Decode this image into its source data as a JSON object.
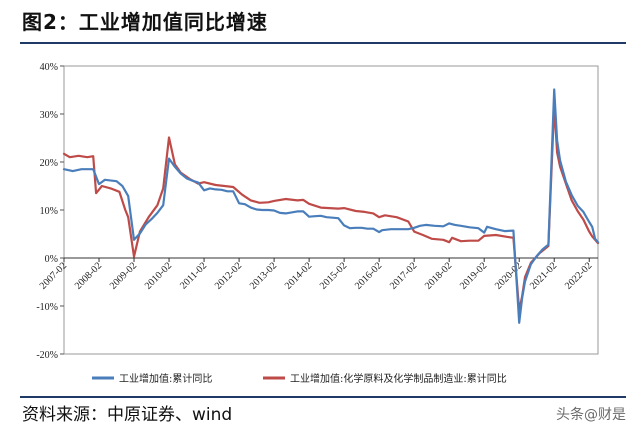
{
  "header": {
    "title": "图2：工业增加值同比增速"
  },
  "footer": {
    "source": "资料来源：中原证券、wind",
    "watermark": "头条@财是"
  },
  "chart_data": {
    "type": "line",
    "ylim": [
      -20,
      40
    ],
    "yticks": [
      -20,
      -10,
      0,
      10,
      20,
      30,
      40
    ],
    "ytick_labels": [
      "-20%",
      "-10%",
      "0%",
      "10%",
      "20%",
      "30%",
      "40%"
    ],
    "xlim": [
      "2007-02",
      "2022-05"
    ],
    "xtick_labels": [
      "2007-02",
      "2008-02",
      "2009-02",
      "2010-02",
      "2011-02",
      "2012-02",
      "2013-02",
      "2014-02",
      "2015-02",
      "2016-02",
      "2017-02",
      "2018-02",
      "2019-02",
      "2020-02",
      "2021-02",
      "2022-02"
    ],
    "colors": {
      "series1": "#4a7ebb",
      "series2": "#be4b48"
    },
    "legend_position": "bottom",
    "series": [
      {
        "name": "工业增加值:累计同比",
        "points": [
          [
            "2007-02",
            18.5
          ],
          [
            "2007-05",
            18.1
          ],
          [
            "2007-08",
            18.5
          ],
          [
            "2007-12",
            18.5
          ],
          [
            "2008-02",
            15.4
          ],
          [
            "2008-04",
            16.3
          ],
          [
            "2008-08",
            16.0
          ],
          [
            "2008-10",
            15.0
          ],
          [
            "2008-12",
            12.9
          ],
          [
            "2009-02",
            3.8
          ],
          [
            "2009-04",
            5.1
          ],
          [
            "2009-06",
            7.0
          ],
          [
            "2009-08",
            8.1
          ],
          [
            "2009-10",
            9.4
          ],
          [
            "2009-12",
            11.0
          ],
          [
            "2010-02",
            20.7
          ],
          [
            "2010-04",
            19.0
          ],
          [
            "2010-06",
            17.6
          ],
          [
            "2010-08",
            16.6
          ],
          [
            "2010-10",
            16.1
          ],
          [
            "2010-12",
            15.7
          ],
          [
            "2011-02",
            14.1
          ],
          [
            "2011-04",
            14.5
          ],
          [
            "2011-06",
            14.3
          ],
          [
            "2011-08",
            14.2
          ],
          [
            "2011-10",
            13.9
          ],
          [
            "2011-12",
            13.9
          ],
          [
            "2012-02",
            11.4
          ],
          [
            "2012-04",
            11.2
          ],
          [
            "2012-06",
            10.5
          ],
          [
            "2012-08",
            10.1
          ],
          [
            "2012-10",
            10.0
          ],
          [
            "2012-12",
            10.0
          ],
          [
            "2013-02",
            9.9
          ],
          [
            "2013-04",
            9.4
          ],
          [
            "2013-06",
            9.3
          ],
          [
            "2013-08",
            9.5
          ],
          [
            "2013-10",
            9.7
          ],
          [
            "2013-12",
            9.7
          ],
          [
            "2014-02",
            8.6
          ],
          [
            "2014-04",
            8.7
          ],
          [
            "2014-06",
            8.8
          ],
          [
            "2014-08",
            8.5
          ],
          [
            "2014-10",
            8.4
          ],
          [
            "2014-12",
            8.3
          ],
          [
            "2015-02",
            6.8
          ],
          [
            "2015-04",
            6.2
          ],
          [
            "2015-06",
            6.3
          ],
          [
            "2015-08",
            6.3
          ],
          [
            "2015-10",
            6.1
          ],
          [
            "2015-12",
            6.1
          ],
          [
            "2016-02",
            5.4
          ],
          [
            "2016-03",
            5.8
          ],
          [
            "2016-06",
            6.0
          ],
          [
            "2016-09",
            6.0
          ],
          [
            "2016-12",
            6.0
          ],
          [
            "2017-02",
            6.3
          ],
          [
            "2017-04",
            6.7
          ],
          [
            "2017-06",
            6.9
          ],
          [
            "2017-09",
            6.7
          ],
          [
            "2017-12",
            6.6
          ],
          [
            "2018-02",
            7.2
          ],
          [
            "2018-04",
            6.9
          ],
          [
            "2018-06",
            6.7
          ],
          [
            "2018-09",
            6.4
          ],
          [
            "2018-12",
            6.2
          ],
          [
            "2019-02",
            5.3
          ],
          [
            "2019-03",
            6.5
          ],
          [
            "2019-06",
            6.0
          ],
          [
            "2019-09",
            5.6
          ],
          [
            "2019-12",
            5.7
          ],
          [
            "2020-02",
            -13.5
          ],
          [
            "2020-03",
            -8.4
          ],
          [
            "2020-04",
            -4.9
          ],
          [
            "2020-06",
            -1.3
          ],
          [
            "2020-08",
            0.4
          ],
          [
            "2020-10",
            1.8
          ],
          [
            "2020-12",
            2.8
          ],
          [
            "2021-02",
            35.1
          ],
          [
            "2021-03",
            24.5
          ],
          [
            "2021-04",
            20.3
          ],
          [
            "2021-06",
            15.9
          ],
          [
            "2021-08",
            13.1
          ],
          [
            "2021-10",
            10.9
          ],
          [
            "2021-12",
            9.6
          ],
          [
            "2022-02",
            7.5
          ],
          [
            "2022-03",
            6.5
          ],
          [
            "2022-04",
            4.0
          ],
          [
            "2022-05",
            3.3
          ]
        ]
      },
      {
        "name": "工业增加值:化学原料及化学制品制造业:累计同比",
        "points": [
          [
            "2007-02",
            21.7
          ],
          [
            "2007-04",
            21.0
          ],
          [
            "2007-07",
            21.3
          ],
          [
            "2007-10",
            21.0
          ],
          [
            "2007-12",
            21.2
          ],
          [
            "2008-01",
            13.5
          ],
          [
            "2008-03",
            15.0
          ],
          [
            "2008-06",
            14.5
          ],
          [
            "2008-09",
            13.8
          ],
          [
            "2008-11",
            10.0
          ],
          [
            "2008-12",
            8.5
          ],
          [
            "2009-02",
            0.3
          ],
          [
            "2009-04",
            5.5
          ],
          [
            "2009-07",
            8.5
          ],
          [
            "2009-10",
            11.0
          ],
          [
            "2009-12",
            14.5
          ],
          [
            "2010-02",
            25.1
          ],
          [
            "2010-04",
            19.5
          ],
          [
            "2010-06",
            17.8
          ],
          [
            "2010-09",
            16.5
          ],
          [
            "2010-12",
            15.5
          ],
          [
            "2011-02",
            15.8
          ],
          [
            "2011-06",
            15.2
          ],
          [
            "2011-09",
            15.0
          ],
          [
            "2011-12",
            14.8
          ],
          [
            "2012-03",
            13.2
          ],
          [
            "2012-06",
            12.0
          ],
          [
            "2012-09",
            11.5
          ],
          [
            "2012-12",
            11.6
          ],
          [
            "2013-02",
            11.9
          ],
          [
            "2013-06",
            12.3
          ],
          [
            "2013-10",
            12.0
          ],
          [
            "2013-12",
            12.1
          ],
          [
            "2014-02",
            11.3
          ],
          [
            "2014-06",
            10.5
          ],
          [
            "2014-09",
            10.4
          ],
          [
            "2014-12",
            10.3
          ],
          [
            "2015-02",
            10.4
          ],
          [
            "2015-06",
            9.8
          ],
          [
            "2015-09",
            9.6
          ],
          [
            "2015-12",
            9.3
          ],
          [
            "2016-02",
            8.5
          ],
          [
            "2016-04",
            8.9
          ],
          [
            "2016-08",
            8.5
          ],
          [
            "2016-12",
            7.6
          ],
          [
            "2017-02",
            5.5
          ],
          [
            "2017-05",
            4.8
          ],
          [
            "2017-08",
            4.0
          ],
          [
            "2017-12",
            3.8
          ],
          [
            "2018-02",
            3.3
          ],
          [
            "2018-03",
            4.2
          ],
          [
            "2018-06",
            3.5
          ],
          [
            "2018-09",
            3.6
          ],
          [
            "2018-12",
            3.6
          ],
          [
            "2019-02",
            4.6
          ],
          [
            "2019-06",
            4.8
          ],
          [
            "2019-10",
            4.4
          ],
          [
            "2019-12",
            4.2
          ],
          [
            "2020-02",
            -11.0
          ],
          [
            "2020-03",
            -8.0
          ],
          [
            "2020-04",
            -4.0
          ],
          [
            "2020-06",
            -1.0
          ],
          [
            "2020-09",
            1.0
          ],
          [
            "2020-12",
            2.5
          ],
          [
            "2021-02",
            31.8
          ],
          [
            "2021-03",
            22.0
          ],
          [
            "2021-04",
            19.0
          ],
          [
            "2021-06",
            15.5
          ],
          [
            "2021-08",
            12.0
          ],
          [
            "2021-10",
            9.8
          ],
          [
            "2021-12",
            8.0
          ],
          [
            "2022-02",
            5.5
          ],
          [
            "2022-03",
            4.5
          ],
          [
            "2022-04",
            3.8
          ],
          [
            "2022-05",
            3.1
          ]
        ]
      }
    ]
  }
}
